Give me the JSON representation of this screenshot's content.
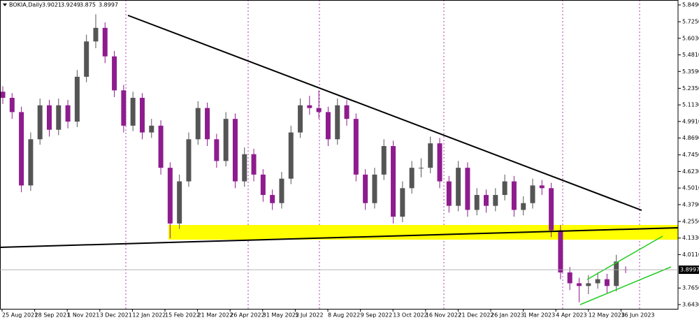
{
  "chart_data": {
    "type": "candlestick",
    "title": "BOKIA,Daily",
    "up_color": "#555555",
    "down_color": "#8e1c8e",
    "ylim": [
      3.612,
      5.885
    ],
    "yticks": [
      {
        "value": 5.849,
        "label": "5.8490"
      },
      {
        "value": 5.725,
        "label": "5.7250"
      },
      {
        "value": 5.603,
        "label": "5.6030"
      },
      {
        "value": 5.481,
        "label": "5.4810"
      },
      {
        "value": 5.359,
        "label": "5.3590"
      },
      {
        "value": 5.235,
        "label": "5.2350"
      },
      {
        "value": 5.113,
        "label": "5.1130"
      },
      {
        "value": 4.991,
        "label": "4.9910"
      },
      {
        "value": 4.869,
        "label": "4.8690"
      },
      {
        "value": 4.745,
        "label": "4.7450"
      },
      {
        "value": 4.623,
        "label": "4.6230"
      },
      {
        "value": 4.501,
        "label": "4.5010"
      },
      {
        "value": 4.379,
        "label": "4.3790"
      },
      {
        "value": 4.255,
        "label": "4.2550"
      },
      {
        "value": 4.133,
        "label": "4.1330"
      },
      {
        "value": 4.011,
        "label": "4.0110"
      },
      {
        "value": 3.765,
        "label": "3.7650"
      },
      {
        "value": 3.643,
        "label": "3.6430"
      }
    ],
    "xticks": [
      "25 Aug 2021",
      "28 Sep 2021",
      "1 Nov 2021",
      "3 Dec 2021",
      "12 Jan 2022",
      "15 Feb 2022",
      "21 Mar 2022",
      "26 Apr 2022",
      "31 May 2022",
      "5 Jul 2022",
      "8 Aug 2022",
      "9 Sep 2022",
      "13 Oct 2022",
      "16 Nov 2022",
      "21 Dec 2022",
      "26 Jan 2023",
      "1 Mar 2023",
      "4 Apr 2023",
      "12 May 2023",
      "16 Jun 2023"
    ],
    "ohlc": [
      [
        5.21,
        5.25,
        5.12,
        5.165
      ],
      [
        5.165,
        5.2,
        5.01,
        5.06
      ],
      [
        5.06,
        5.1,
        4.47,
        4.52
      ],
      [
        4.52,
        4.91,
        4.48,
        4.86
      ],
      [
        4.86,
        5.16,
        4.82,
        5.11
      ],
      [
        5.11,
        5.15,
        4.88,
        4.93
      ],
      [
        4.93,
        5.16,
        4.89,
        5.11
      ],
      [
        5.11,
        5.15,
        4.94,
        4.99
      ],
      [
        4.99,
        5.37,
        4.95,
        5.32
      ],
      [
        5.32,
        5.63,
        5.28,
        5.58
      ],
      [
        5.58,
        5.78,
        5.53,
        5.68
      ],
      [
        5.68,
        5.72,
        5.42,
        5.47
      ],
      [
        5.47,
        5.51,
        5.17,
        5.22
      ],
      [
        5.22,
        5.26,
        4.91,
        4.96
      ],
      [
        4.96,
        5.21,
        4.92,
        5.165
      ],
      [
        5.165,
        5.2,
        4.86,
        4.91
      ],
      [
        4.91,
        5.01,
        4.87,
        4.96
      ],
      [
        4.96,
        5.0,
        4.6,
        4.65
      ],
      [
        4.65,
        4.69,
        4.13,
        4.24
      ],
      [
        4.24,
        4.6,
        4.2,
        4.55
      ],
      [
        4.55,
        4.91,
        4.51,
        4.86
      ],
      [
        4.86,
        5.14,
        4.82,
        5.09
      ],
      [
        5.09,
        5.13,
        4.81,
        4.86
      ],
      [
        4.86,
        4.9,
        4.65,
        4.7
      ],
      [
        4.7,
        5.06,
        4.66,
        5.01
      ],
      [
        5.01,
        5.05,
        4.5,
        4.55
      ],
      [
        4.55,
        4.8,
        4.51,
        4.75
      ],
      [
        4.75,
        4.79,
        4.55,
        4.6
      ],
      [
        4.6,
        4.64,
        4.4,
        4.45
      ],
      [
        4.45,
        4.49,
        4.34,
        4.39
      ],
      [
        4.39,
        4.62,
        4.35,
        4.57
      ],
      [
        4.57,
        4.96,
        4.53,
        4.91
      ],
      [
        4.91,
        5.16,
        4.87,
        5.11
      ],
      [
        5.11,
        5.18,
        5.04,
        5.09
      ],
      [
        5.09,
        5.22,
        5.01,
        5.06
      ],
      [
        5.06,
        5.1,
        4.81,
        4.86
      ],
      [
        4.86,
        5.16,
        4.82,
        5.11
      ],
      [
        5.11,
        5.15,
        4.96,
        5.01
      ],
      [
        5.01,
        5.05,
        4.55,
        4.6
      ],
      [
        4.6,
        4.64,
        4.34,
        4.39
      ],
      [
        4.39,
        4.65,
        4.35,
        4.6
      ],
      [
        4.6,
        4.86,
        4.56,
        4.81
      ],
      [
        4.81,
        4.85,
        4.24,
        4.29
      ],
      [
        4.29,
        4.55,
        4.25,
        4.5
      ],
      [
        4.5,
        4.7,
        4.46,
        4.65
      ],
      [
        4.65,
        4.72,
        4.58,
        4.65
      ],
      [
        4.65,
        4.88,
        4.61,
        4.83
      ],
      [
        4.83,
        4.87,
        4.5,
        4.55
      ],
      [
        4.55,
        4.59,
        4.32,
        4.37
      ],
      [
        4.37,
        4.7,
        4.33,
        4.65
      ],
      [
        4.65,
        4.69,
        4.29,
        4.34
      ],
      [
        4.34,
        4.5,
        4.3,
        4.45
      ],
      [
        4.45,
        4.49,
        4.32,
        4.37
      ],
      [
        4.37,
        4.5,
        4.33,
        4.45
      ],
      [
        4.45,
        4.6,
        4.41,
        4.55
      ],
      [
        4.55,
        4.59,
        4.29,
        4.34
      ],
      [
        4.34,
        4.44,
        4.3,
        4.39
      ],
      [
        4.39,
        4.57,
        4.35,
        4.52
      ],
      [
        4.52,
        4.56,
        4.45,
        4.5
      ],
      [
        4.5,
        4.54,
        4.14,
        4.19
      ],
      [
        4.19,
        4.23,
        3.83,
        3.88
      ],
      [
        3.88,
        3.92,
        3.75,
        3.8
      ],
      [
        3.8,
        3.84,
        3.66,
        3.78
      ],
      [
        3.78,
        3.86,
        3.72,
        3.8
      ],
      [
        3.8,
        3.88,
        3.76,
        3.83
      ],
      [
        3.83,
        3.87,
        3.73,
        3.78
      ],
      [
        3.78,
        4.01,
        3.74,
        3.96
      ],
      [
        3.9021,
        3.9249,
        3.875,
        3.8997
      ]
    ]
  }
}
